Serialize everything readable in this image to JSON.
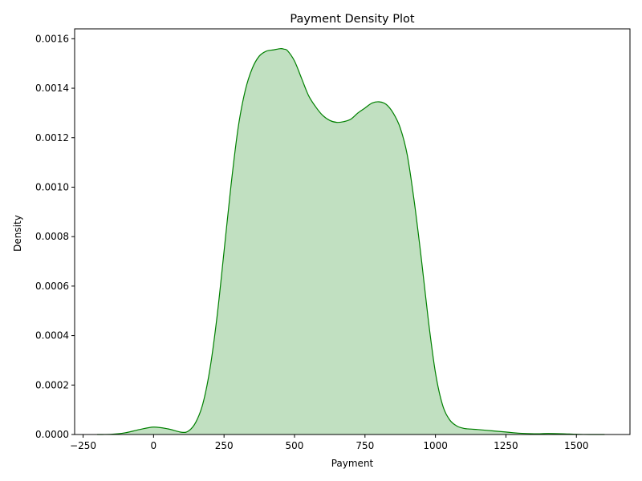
{
  "chart_data": {
    "type": "area",
    "title": "Payment Density Plot",
    "xlabel": "Payment",
    "ylabel": "Density",
    "xlim": [
      -280,
      1690
    ],
    "ylim": [
      0,
      0.00164
    ],
    "x_ticks": [
      -250,
      0,
      250,
      500,
      750,
      1000,
      1250,
      1500
    ],
    "x_tick_labels": [
      "−250",
      "0",
      "250",
      "500",
      "750",
      "1000",
      "1250",
      "1500"
    ],
    "y_ticks": [
      0,
      0.0002,
      0.0004,
      0.0006,
      0.0008,
      0.001,
      0.0012,
      0.0014,
      0.0016
    ],
    "y_tick_labels": [
      "0.0000",
      "0.0002",
      "0.0004",
      "0.0006",
      "0.0008",
      "0.0010",
      "0.0012",
      "0.0014",
      "0.0016"
    ],
    "grid": false,
    "legend": "none",
    "colors": {
      "line": "#008000",
      "fill": "#c1e0c1",
      "axes": "#000000"
    },
    "series": [
      {
        "x": [
          -200,
          -150,
          -100,
          -50,
          0,
          50,
          100,
          125,
          150,
          175,
          200,
          225,
          250,
          275,
          300,
          325,
          350,
          375,
          400,
          425,
          450,
          463,
          475,
          500,
          525,
          550,
          575,
          600,
          625,
          650,
          675,
          700,
          725,
          750,
          775,
          800,
          825,
          850,
          875,
          900,
          925,
          950,
          975,
          1000,
          1025,
          1050,
          1075,
          1100,
          1125,
          1150,
          1200,
          1250,
          1300,
          1350,
          1400,
          1450,
          1500,
          1550,
          1600
        ],
        "y": [
          0,
          1e-06,
          7e-06,
          2e-05,
          3e-05,
          2.3e-05,
          9e-06,
          1.5e-05,
          5e-05,
          0.000125,
          0.000265,
          0.000475,
          0.00074,
          0.00101,
          0.00124,
          0.00139,
          0.00148,
          0.00153,
          0.00155,
          0.001555,
          0.00156,
          0.001558,
          0.001552,
          0.00151,
          0.00144,
          0.00137,
          0.001325,
          0.00129,
          0.00127,
          0.001262,
          0.001265,
          0.001275,
          0.0013,
          0.00132,
          0.00134,
          0.001345,
          0.001335,
          0.0013,
          0.00124,
          0.00113,
          0.00094,
          0.00071,
          0.00046,
          0.00025,
          0.00012,
          6e-05,
          3.5e-05,
          2.5e-05,
          2.2e-05,
          2e-05,
          1.5e-05,
          1e-05,
          5e-06,
          3e-06,
          4e-06,
          3e-06,
          1e-06,
          0,
          0
        ]
      }
    ]
  }
}
